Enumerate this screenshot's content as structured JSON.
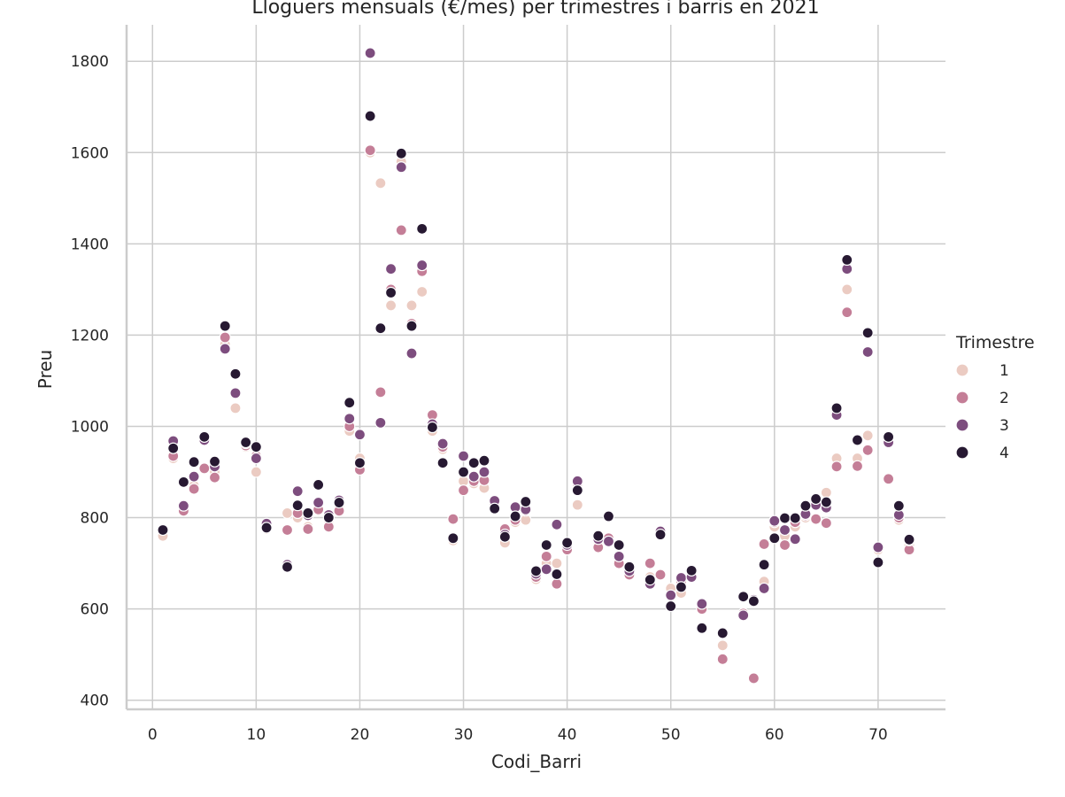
{
  "chart_data": {
    "type": "scatter",
    "title": "Lloguers mensuals (€/mes) per trimestres i barris en 2021",
    "xlabel": "Codi_Barri",
    "ylabel": "Preu",
    "xlim": [
      -2.5,
      76.5
    ],
    "ylim": [
      380,
      1880
    ],
    "xticks": [
      "0",
      "10",
      "20",
      "30",
      "40",
      "50",
      "60",
      "70"
    ],
    "yticks": [
      "400",
      "600",
      "800",
      "1000",
      "1200",
      "1400",
      "1600",
      "1800"
    ],
    "grid": true,
    "legend": {
      "title": "Trimestre",
      "placement": "right"
    },
    "series": [
      {
        "name": "1",
        "color": "#ebcbc2",
        "points": [
          [
            1,
            760
          ],
          [
            2,
            930
          ],
          [
            3,
            820
          ],
          [
            4,
            870
          ],
          [
            5,
            910
          ],
          [
            6,
            900
          ],
          [
            7,
            1180
          ],
          [
            8,
            1040
          ],
          [
            9,
            955
          ],
          [
            10,
            900
          ],
          [
            11,
            775
          ],
          [
            13,
            810
          ],
          [
            14,
            800
          ],
          [
            15,
            780
          ],
          [
            16,
            815
          ],
          [
            17,
            795
          ],
          [
            18,
            825
          ],
          [
            19,
            990
          ],
          [
            20,
            930
          ],
          [
            21,
            1600
          ],
          [
            22,
            1533
          ],
          [
            23,
            1265
          ],
          [
            24,
            1580
          ],
          [
            25,
            1265
          ],
          [
            26,
            1295
          ],
          [
            27,
            990
          ],
          [
            28,
            950
          ],
          [
            29,
            750
          ],
          [
            30,
            880
          ],
          [
            31,
            875
          ],
          [
            32,
            865
          ],
          [
            33,
            825
          ],
          [
            34,
            745
          ],
          [
            35,
            790
          ],
          [
            36,
            795
          ],
          [
            37,
            665
          ],
          [
            38,
            700
          ],
          [
            39,
            700
          ],
          [
            40,
            740
          ],
          [
            41,
            828
          ],
          [
            43,
            740
          ],
          [
            44,
            750
          ],
          [
            45,
            705
          ],
          [
            46,
            680
          ],
          [
            48,
            670
          ],
          [
            49,
            675
          ],
          [
            50,
            645
          ],
          [
            51,
            635
          ],
          [
            52,
            675
          ],
          [
            53,
            600
          ],
          [
            55,
            520
          ],
          [
            57,
            590
          ],
          [
            59,
            660
          ],
          [
            60,
            780
          ],
          [
            61,
            760
          ],
          [
            62,
            780
          ],
          [
            63,
            800
          ],
          [
            64,
            830
          ],
          [
            65,
            855
          ],
          [
            66,
            930
          ],
          [
            67,
            1300
          ],
          [
            68,
            930
          ],
          [
            69,
            980
          ],
          [
            70,
            730
          ],
          [
            71,
            885
          ],
          [
            72,
            795
          ],
          [
            73,
            740
          ]
        ]
      },
      {
        "name": "2",
        "color": "#c47e97",
        "points": [
          [
            2,
            935
          ],
          [
            3,
            815
          ],
          [
            4,
            863
          ],
          [
            5,
            908
          ],
          [
            6,
            888
          ],
          [
            7,
            1195
          ],
          [
            8,
            1075
          ],
          [
            9,
            958
          ],
          [
            10,
            935
          ],
          [
            11,
            780
          ],
          [
            13,
            773
          ],
          [
            14,
            810
          ],
          [
            15,
            775
          ],
          [
            16,
            818
          ],
          [
            17,
            780
          ],
          [
            18,
            815
          ],
          [
            19,
            1000
          ],
          [
            20,
            905
          ],
          [
            21,
            1605
          ],
          [
            22,
            1075
          ],
          [
            23,
            1300
          ],
          [
            24,
            1430
          ],
          [
            25,
            1225
          ],
          [
            26,
            1340
          ],
          [
            27,
            1025
          ],
          [
            28,
            955
          ],
          [
            29,
            797
          ],
          [
            30,
            860
          ],
          [
            31,
            880
          ],
          [
            32,
            882
          ],
          [
            33,
            830
          ],
          [
            34,
            775
          ],
          [
            35,
            795
          ],
          [
            36,
            815
          ],
          [
            37,
            670
          ],
          [
            38,
            715
          ],
          [
            39,
            655
          ],
          [
            40,
            730
          ],
          [
            41,
            875
          ],
          [
            43,
            735
          ],
          [
            44,
            755
          ],
          [
            45,
            700
          ],
          [
            46,
            675
          ],
          [
            48,
            700
          ],
          [
            49,
            675
          ],
          [
            50,
            630
          ],
          [
            51,
            660
          ],
          [
            52,
            670
          ],
          [
            53,
            600
          ],
          [
            55,
            490
          ],
          [
            57,
            590
          ],
          [
            58,
            448
          ],
          [
            59,
            742
          ],
          [
            60,
            790
          ],
          [
            61,
            740
          ],
          [
            62,
            790
          ],
          [
            63,
            805
          ],
          [
            64,
            797
          ],
          [
            65,
            788
          ],
          [
            66,
            912
          ],
          [
            67,
            1250
          ],
          [
            68,
            913
          ],
          [
            69,
            948
          ],
          [
            70,
            735
          ],
          [
            71,
            885
          ],
          [
            72,
            800
          ],
          [
            73,
            730
          ]
        ]
      },
      {
        "name": "3",
        "color": "#7d4d7e",
        "points": [
          [
            2,
            968
          ],
          [
            3,
            826
          ],
          [
            4,
            890
          ],
          [
            5,
            970
          ],
          [
            6,
            912
          ],
          [
            7,
            1170
          ],
          [
            8,
            1073
          ],
          [
            9,
            963
          ],
          [
            10,
            930
          ],
          [
            11,
            787
          ],
          [
            13,
            697
          ],
          [
            14,
            858
          ],
          [
            15,
            805
          ],
          [
            16,
            833
          ],
          [
            17,
            806
          ],
          [
            18,
            838
          ],
          [
            19,
            1017
          ],
          [
            20,
            982
          ],
          [
            21,
            1818
          ],
          [
            22,
            1008
          ],
          [
            23,
            1345
          ],
          [
            24,
            1568
          ],
          [
            25,
            1160
          ],
          [
            26,
            1353
          ],
          [
            27,
            1005
          ],
          [
            28,
            962
          ],
          [
            29,
            755
          ],
          [
            30,
            935
          ],
          [
            31,
            890
          ],
          [
            32,
            900
          ],
          [
            33,
            837
          ],
          [
            34,
            763
          ],
          [
            35,
            823
          ],
          [
            36,
            818
          ],
          [
            37,
            677
          ],
          [
            38,
            687
          ],
          [
            39,
            785
          ],
          [
            40,
            740
          ],
          [
            41,
            880
          ],
          [
            43,
            753
          ],
          [
            44,
            748
          ],
          [
            45,
            715
          ],
          [
            46,
            683
          ],
          [
            48,
            655
          ],
          [
            49,
            770
          ],
          [
            50,
            630
          ],
          [
            51,
            668
          ],
          [
            52,
            670
          ],
          [
            53,
            611
          ],
          [
            55,
            545
          ],
          [
            57,
            586
          ],
          [
            58,
            620
          ],
          [
            59,
            645
          ],
          [
            60,
            793
          ],
          [
            61,
            773
          ],
          [
            62,
            753
          ],
          [
            63,
            808
          ],
          [
            64,
            828
          ],
          [
            65,
            822
          ],
          [
            66,
            1025
          ],
          [
            67,
            1345
          ],
          [
            68,
            970
          ],
          [
            69,
            1163
          ],
          [
            70,
            735
          ],
          [
            71,
            965
          ],
          [
            72,
            806
          ],
          [
            73,
            750
          ]
        ]
      },
      {
        "name": "4",
        "color": "#271932",
        "points": [
          [
            1,
            773
          ],
          [
            2,
            952
          ],
          [
            3,
            878
          ],
          [
            4,
            922
          ],
          [
            5,
            977
          ],
          [
            6,
            923
          ],
          [
            7,
            1220
          ],
          [
            8,
            1115
          ],
          [
            9,
            965
          ],
          [
            10,
            955
          ],
          [
            11,
            778
          ],
          [
            13,
            692
          ],
          [
            14,
            827
          ],
          [
            15,
            810
          ],
          [
            16,
            872
          ],
          [
            17,
            800
          ],
          [
            18,
            833
          ],
          [
            19,
            1052
          ],
          [
            20,
            920
          ],
          [
            21,
            1680
          ],
          [
            22,
            1215
          ],
          [
            23,
            1293
          ],
          [
            24,
            1598
          ],
          [
            25,
            1220
          ],
          [
            26,
            1433
          ],
          [
            27,
            998
          ],
          [
            28,
            920
          ],
          [
            29,
            755
          ],
          [
            30,
            900
          ],
          [
            31,
            920
          ],
          [
            32,
            925
          ],
          [
            33,
            820
          ],
          [
            34,
            758
          ],
          [
            35,
            803
          ],
          [
            36,
            835
          ],
          [
            37,
            683
          ],
          [
            38,
            740
          ],
          [
            39,
            676
          ],
          [
            40,
            745
          ],
          [
            41,
            860
          ],
          [
            43,
            760
          ],
          [
            44,
            803
          ],
          [
            45,
            740
          ],
          [
            46,
            692
          ],
          [
            48,
            664
          ],
          [
            49,
            763
          ],
          [
            50,
            606
          ],
          [
            51,
            648
          ],
          [
            52,
            684
          ],
          [
            53,
            558
          ],
          [
            55,
            547
          ],
          [
            57,
            627
          ],
          [
            58,
            617
          ],
          [
            59,
            697
          ],
          [
            60,
            755
          ],
          [
            61,
            799
          ],
          [
            62,
            799
          ],
          [
            63,
            826
          ],
          [
            64,
            841
          ],
          [
            65,
            834
          ],
          [
            66,
            1040
          ],
          [
            67,
            1365
          ],
          [
            68,
            970
          ],
          [
            69,
            1205
          ],
          [
            70,
            702
          ],
          [
            71,
            977
          ],
          [
            72,
            826
          ],
          [
            73,
            752
          ]
        ]
      }
    ]
  }
}
